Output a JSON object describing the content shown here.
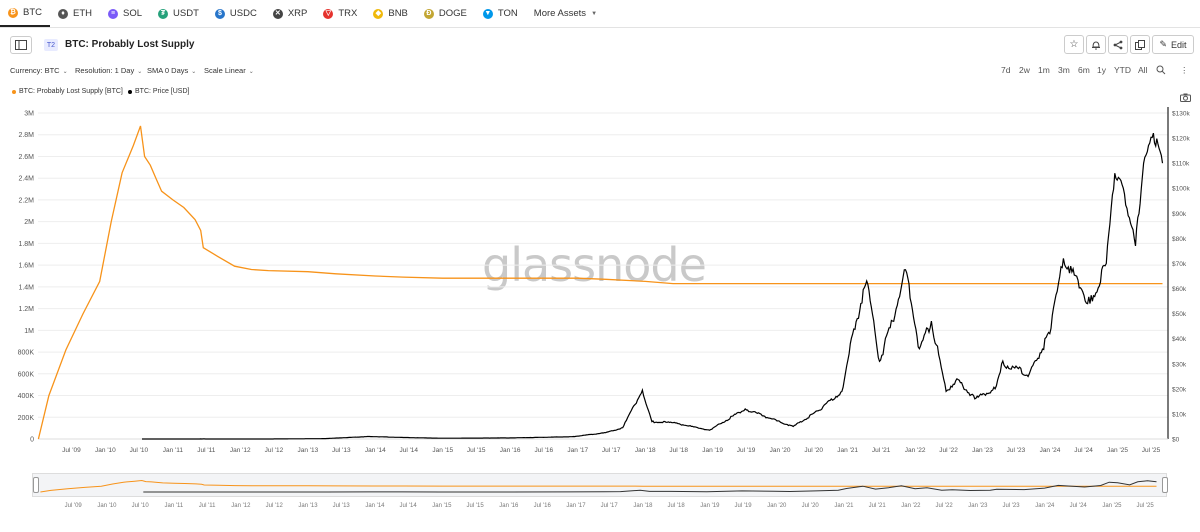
{
  "asset_tabs": [
    {
      "label": "BTC",
      "icon": "bitcoin-icon",
      "color": "#f7931a",
      "glyph": "₿",
      "active": true
    },
    {
      "label": "ETH",
      "icon": "ethereum-icon",
      "color": "#555555",
      "glyph": "♦",
      "active": false
    },
    {
      "label": "SOL",
      "icon": "solana-icon",
      "color": "#7a5af8",
      "glyph": "≡",
      "active": false
    },
    {
      "label": "USDT",
      "icon": "tether-icon",
      "color": "#26a17b",
      "glyph": "₮",
      "active": false
    },
    {
      "label": "USDC",
      "icon": "usdc-icon",
      "color": "#2775ca",
      "glyph": "$",
      "active": false
    },
    {
      "label": "XRP",
      "icon": "xrp-icon",
      "color": "#444444",
      "glyph": "✕",
      "active": false
    },
    {
      "label": "TRX",
      "icon": "tron-icon",
      "color": "#e5322d",
      "glyph": "▽",
      "active": false
    },
    {
      "label": "BNB",
      "icon": "bnb-icon",
      "color": "#f0b90b",
      "glyph": "◆",
      "active": false
    },
    {
      "label": "DOGE",
      "icon": "doge-icon",
      "color": "#c2a633",
      "glyph": "Ð",
      "active": false
    },
    {
      "label": "TON",
      "icon": "ton-icon",
      "color": "#0098ea",
      "glyph": "▼",
      "active": false
    }
  ],
  "more_assets": "More Assets",
  "header": {
    "tier": "T2",
    "title": "BTC: Probably Lost Supply",
    "edit_label": "Edit"
  },
  "controls": {
    "currency": "Currency: BTC",
    "resolution": "Resolution: 1 Day",
    "sma": "SMA 0 Days",
    "scale": "Scale Linear"
  },
  "ranges": [
    "7d",
    "2w",
    "1m",
    "3m",
    "6m",
    "1y",
    "YTD",
    "All"
  ],
  "watermark": "glassnode",
  "colors": {
    "supply": "#f7931a",
    "price": "#000000",
    "grid": "#eeeeee"
  },
  "chart_data": {
    "type": "line",
    "series": [
      {
        "name": "BTC: Probably Lost Supply [BTC]",
        "axis": "left",
        "x": [
          "2009-01-03",
          "2009-03-01",
          "2009-06-01",
          "2009-09-01",
          "2009-12-01",
          "2010-02-01",
          "2010-04-01",
          "2010-06-01",
          "2010-07-10",
          "2010-07-20",
          "2010-08-01",
          "2010-09-01",
          "2010-10-01",
          "2010-11-01",
          "2011-01-01",
          "2011-03-01",
          "2011-05-01",
          "2011-06-01",
          "2011-06-15",
          "2011-09-01",
          "2011-12-01",
          "2012-03-01",
          "2012-06-01",
          "2013-01-01",
          "2013-06-01",
          "2014-01-01",
          "2014-06-01",
          "2015-01-01",
          "2016-01-01",
          "2017-01-01",
          "2017-06-01",
          "2018-01-01",
          "2018-06-01",
          "2019-01-01",
          "2020-01-01",
          "2021-01-01",
          "2022-01-01",
          "2023-01-01",
          "2024-01-01",
          "2025-01-01",
          "2025-09-01"
        ],
        "values": [
          0,
          400000,
          820000,
          1150000,
          1450000,
          2000000,
          2450000,
          2700000,
          2880000,
          2750000,
          2600000,
          2520000,
          2400000,
          2280000,
          2200000,
          2130000,
          2020000,
          1920000,
          1760000,
          1680000,
          1590000,
          1560000,
          1550000,
          1540000,
          1520000,
          1500000,
          1490000,
          1480000,
          1480000,
          1480000,
          1470000,
          1450000,
          1430000,
          1430000,
          1430000,
          1430000,
          1430000,
          1430000,
          1430000,
          1430000,
          1430000
        ]
      },
      {
        "name": "BTC: Price [USD]",
        "axis": "right",
        "x": [
          "2010-07-18",
          "2011-06-01",
          "2012-06-01",
          "2013-04-01",
          "2013-12-01",
          "2014-06-01",
          "2015-01-01",
          "2016-01-01",
          "2016-12-01",
          "2017-06-01",
          "2017-09-01",
          "2017-12-17",
          "2018-02-06",
          "2018-06-01",
          "2018-12-15",
          "2019-06-26",
          "2019-12-15",
          "2020-03-12",
          "2020-08-01",
          "2020-12-01",
          "2021-01-15",
          "2021-04-14",
          "2021-06-22",
          "2021-09-01",
          "2021-11-10",
          "2022-01-24",
          "2022-03-30",
          "2022-06-18",
          "2022-08-15",
          "2022-11-20",
          "2023-03-10",
          "2023-04-14",
          "2023-09-11",
          "2023-12-31",
          "2024-03-14",
          "2024-08-05",
          "2024-11-01",
          "2024-12-17",
          "2025-02-01",
          "2025-04-08",
          "2025-05-22",
          "2025-07-14",
          "2025-09-01"
        ],
        "values": [
          0,
          20,
          5,
          150,
          1000,
          600,
          300,
          430,
          900,
          2500,
          4500,
          19500,
          6900,
          6500,
          3500,
          12000,
          7200,
          5000,
          11500,
          19000,
          38000,
          63000,
          31000,
          47000,
          67500,
          36000,
          47000,
          19000,
          24000,
          16000,
          20000,
          30000,
          26000,
          42000,
          72000,
          54000,
          70000,
          106000,
          100000,
          77000,
          110000,
          122000,
          110000
        ]
      }
    ],
    "x_ticks": [
      "Jul '09",
      "Jan '10",
      "Jul '10",
      "Jan '11",
      "Jul '11",
      "Jan '12",
      "Jul '12",
      "Jan '13",
      "Jul '13",
      "Jan '14",
      "Jul '14",
      "Jan '15",
      "Jul '15",
      "Jan '16",
      "Jul '16",
      "Jan '17",
      "Jul '17",
      "Jan '18",
      "Jul '18",
      "Jan '19",
      "Jul '19",
      "Jan '20",
      "Jul '20",
      "Jan '21",
      "Jul '21",
      "Jan '22",
      "Jul '22",
      "Jan '23",
      "Jul '23",
      "Jan '24",
      "Jul '24",
      "Jan '25",
      "Jul '25"
    ],
    "y_left_ticks": [
      "0",
      "200K",
      "400K",
      "600K",
      "800K",
      "1M",
      "1.2M",
      "1.4M",
      "1.6M",
      "1.8M",
      "2M",
      "2.2M",
      "2.4M",
      "2.6M",
      "2.8M",
      "3M"
    ],
    "y_right_ticks": [
      "$0",
      "$10k",
      "$20k",
      "$30k",
      "$40k",
      "$50k",
      "$60k",
      "$70k",
      "$80k",
      "$90k",
      "$100k",
      "$110k",
      "$120k",
      "$130k"
    ],
    "ylim_left": [
      0,
      3000000
    ],
    "ylim_right": [
      0,
      130000
    ],
    "xlim": [
      "2009-01-01",
      "2025-10-01"
    ],
    "grid": true,
    "legend_position": "top-left"
  }
}
